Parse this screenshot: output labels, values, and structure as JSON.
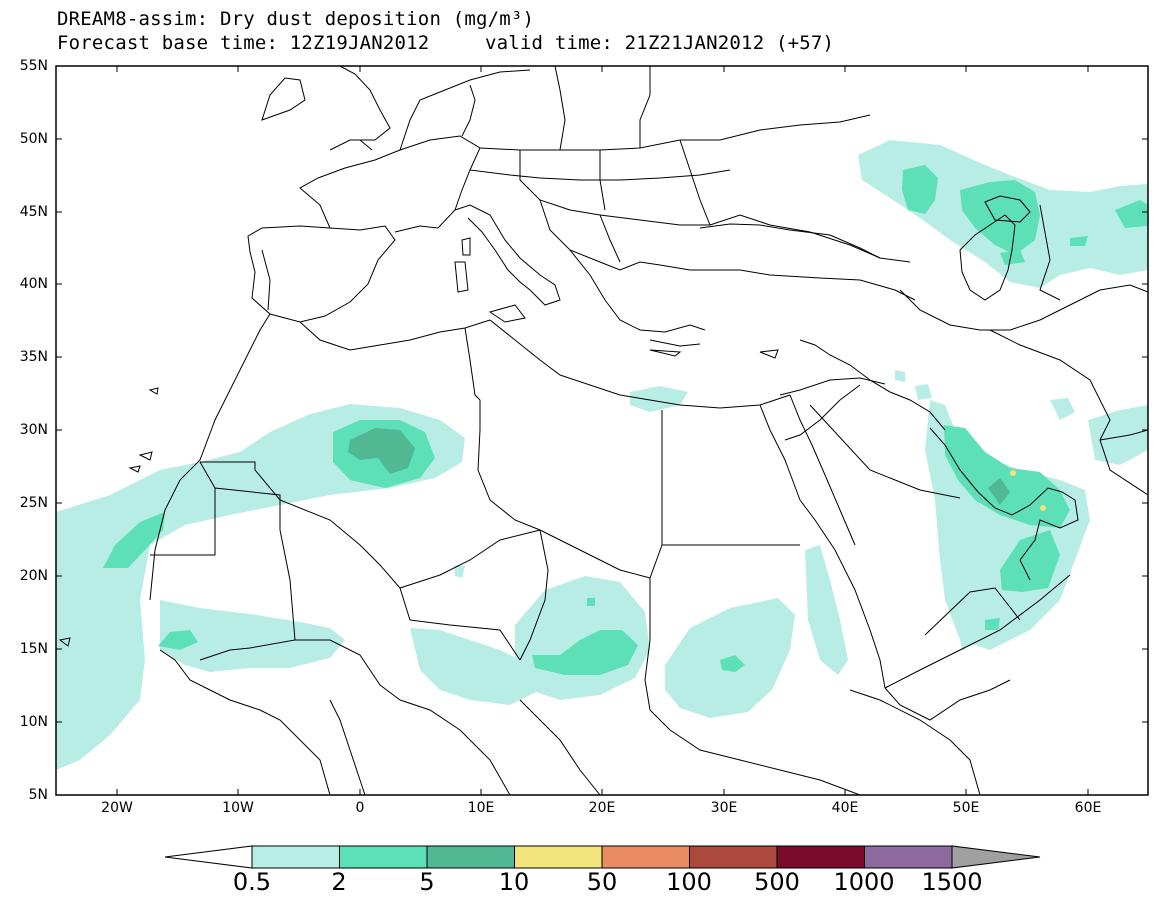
{
  "header": {
    "title_line1": "DREAM8-assim: Dry dust deposition (mg/m³)",
    "base_time": "Forecast base time: 12Z19JAN2012",
    "valid_time": "valid time: 21Z21JAN2012 (+57)"
  },
  "map": {
    "lat_labels": [
      "55N",
      "50N",
      "45N",
      "40N",
      "35N",
      "30N",
      "25N",
      "20N",
      "15N",
      "10N",
      "5N"
    ],
    "lon_labels": [
      "20W",
      "10W",
      "0",
      "10E",
      "20E",
      "30E",
      "40E",
      "50E",
      "60E"
    ]
  },
  "colorbar": {
    "levels": [
      "0.5",
      "2",
      "5",
      "10",
      "50",
      "100",
      "500",
      "1000",
      "1500"
    ],
    "colors": [
      "#b8ede6",
      "#5de0b8",
      "#52b894",
      "#f0e47a",
      "#e88c64",
      "#aa4a3c",
      "#7a0a2c",
      "#8c6aa0"
    ],
    "over_color": "#a0a0a0",
    "under_color": "#ffffff"
  }
}
